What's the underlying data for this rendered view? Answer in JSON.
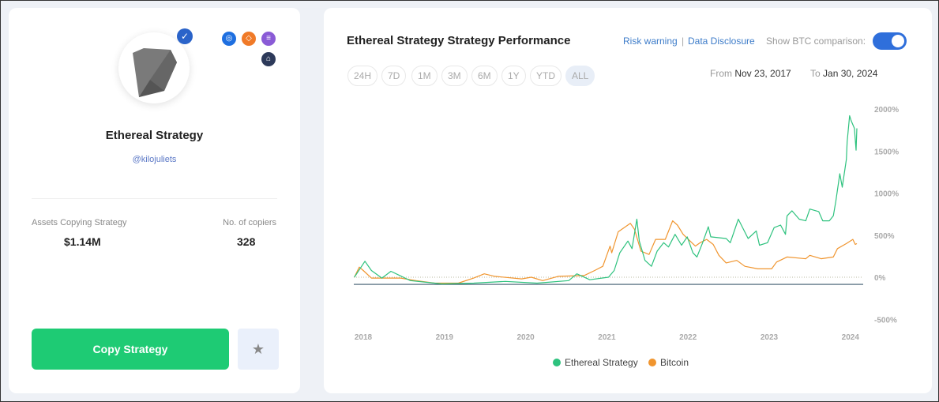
{
  "profile": {
    "name": "Ethereal Strategy",
    "handle": "@kilojuliets",
    "verified": true,
    "badges": [
      "blue-coin-icon",
      "orange-coin-icon",
      "purple-stack-icon",
      "dark-network-icon"
    ],
    "assets_label": "Assets Copying Strategy",
    "assets_value": "$1.14M",
    "copiers_label": "No. of copiers",
    "copiers_value": "328",
    "copy_button": "Copy Strategy",
    "favorite_icon": "star-icon"
  },
  "performance": {
    "title": "Ethereal Strategy Strategy Performance",
    "risk_warning": "Risk warning",
    "separator": "|",
    "data_disclosure": "Data Disclosure",
    "btc_label": "Show BTC comparison:",
    "btc_toggle_on": true,
    "timeframes": [
      "24H",
      "7D",
      "1M",
      "3M",
      "6M",
      "1Y",
      "YTD",
      "ALL"
    ],
    "active_timeframe": "ALL",
    "from_label": "From",
    "from_date": "Nov 23, 2017",
    "to_label": "To",
    "to_date": "Jan 30, 2024"
  },
  "chart_data": {
    "type": "line",
    "ylim": [
      -500,
      2000
    ],
    "xlim": [
      2017.85,
      2024.15
    ],
    "y_ticks": [
      "2000%",
      "1500%",
      "1000%",
      "500%",
      "0%",
      "-500%"
    ],
    "y_tick_values": [
      2000,
      1500,
      1000,
      500,
      0,
      -500
    ],
    "x_ticks": [
      "2018",
      "2019",
      "2020",
      "2021",
      "2022",
      "2023",
      "2024"
    ],
    "x_tick_values": [
      2018,
      2019,
      2020,
      2021,
      2022,
      2023,
      2024
    ],
    "legend_position": "bottom",
    "grid": false,
    "series": [
      {
        "name": "Ethereal Strategy",
        "color": "#2ec27e",
        "points": [
          [
            2017.89,
            0
          ],
          [
            2018.02,
            190
          ],
          [
            2018.1,
            80
          ],
          [
            2018.23,
            -10
          ],
          [
            2018.34,
            70
          ],
          [
            2018.58,
            -40
          ],
          [
            2018.97,
            -80
          ],
          [
            2019.36,
            -70
          ],
          [
            2019.75,
            -50
          ],
          [
            2020.14,
            -70
          ],
          [
            2020.53,
            -40
          ],
          [
            2020.63,
            40
          ],
          [
            2020.79,
            -30
          ],
          [
            2021.02,
            0
          ],
          [
            2021.09,
            80
          ],
          [
            2021.16,
            290
          ],
          [
            2021.26,
            430
          ],
          [
            2021.31,
            340
          ],
          [
            2021.37,
            690
          ],
          [
            2021.4,
            430
          ],
          [
            2021.47,
            200
          ],
          [
            2021.55,
            130
          ],
          [
            2021.62,
            310
          ],
          [
            2021.7,
            410
          ],
          [
            2021.76,
            360
          ],
          [
            2021.84,
            510
          ],
          [
            2021.92,
            380
          ],
          [
            2021.99,
            480
          ],
          [
            2022.06,
            290
          ],
          [
            2022.11,
            240
          ],
          [
            2022.18,
            410
          ],
          [
            2022.25,
            600
          ],
          [
            2022.28,
            480
          ],
          [
            2022.47,
            460
          ],
          [
            2022.52,
            410
          ],
          [
            2022.62,
            690
          ],
          [
            2022.74,
            460
          ],
          [
            2022.84,
            550
          ],
          [
            2022.88,
            380
          ],
          [
            2022.98,
            410
          ],
          [
            2023.06,
            590
          ],
          [
            2023.14,
            620
          ],
          [
            2023.2,
            510
          ],
          [
            2023.22,
            730
          ],
          [
            2023.28,
            790
          ],
          [
            2023.37,
            690
          ],
          [
            2023.45,
            670
          ],
          [
            2023.5,
            810
          ],
          [
            2023.61,
            780
          ],
          [
            2023.66,
            670
          ],
          [
            2023.74,
            670
          ],
          [
            2023.79,
            730
          ],
          [
            2023.82,
            900
          ],
          [
            2023.87,
            1230
          ],
          [
            2023.9,
            1070
          ],
          [
            2023.95,
            1400
          ],
          [
            2023.96,
            1610
          ],
          [
            2023.99,
            1920
          ],
          [
            2024.01,
            1860
          ],
          [
            2024.05,
            1770
          ],
          [
            2024.07,
            1510
          ],
          [
            2024.08,
            1770
          ]
        ]
      },
      {
        "name": "Bitcoin",
        "color": "#f0952f",
        "points": [
          [
            2017.89,
            0
          ],
          [
            2017.95,
            120
          ],
          [
            2018.0,
            80
          ],
          [
            2018.1,
            -10
          ],
          [
            2018.46,
            -10
          ],
          [
            2018.65,
            -40
          ],
          [
            2018.88,
            -70
          ],
          [
            2019.17,
            -70
          ],
          [
            2019.36,
            -10
          ],
          [
            2019.49,
            40
          ],
          [
            2019.62,
            10
          ],
          [
            2019.95,
            -20
          ],
          [
            2020.07,
            0
          ],
          [
            2020.21,
            -40
          ],
          [
            2020.4,
            10
          ],
          [
            2020.72,
            20
          ],
          [
            2020.85,
            80
          ],
          [
            2020.95,
            130
          ],
          [
            2021.04,
            370
          ],
          [
            2021.06,
            290
          ],
          [
            2021.14,
            540
          ],
          [
            2021.29,
            640
          ],
          [
            2021.34,
            570
          ],
          [
            2021.42,
            310
          ],
          [
            2021.52,
            270
          ],
          [
            2021.6,
            450
          ],
          [
            2021.72,
            450
          ],
          [
            2021.81,
            670
          ],
          [
            2021.87,
            620
          ],
          [
            2021.94,
            510
          ],
          [
            2022.09,
            370
          ],
          [
            2022.15,
            410
          ],
          [
            2022.23,
            450
          ],
          [
            2022.31,
            390
          ],
          [
            2022.38,
            260
          ],
          [
            2022.47,
            170
          ],
          [
            2022.6,
            200
          ],
          [
            2022.7,
            130
          ],
          [
            2022.86,
            100
          ],
          [
            2023.03,
            100
          ],
          [
            2023.09,
            180
          ],
          [
            2023.22,
            240
          ],
          [
            2023.45,
            220
          ],
          [
            2023.5,
            260
          ],
          [
            2023.64,
            220
          ],
          [
            2023.79,
            240
          ],
          [
            2023.84,
            340
          ],
          [
            2023.95,
            400
          ],
          [
            2024.03,
            450
          ],
          [
            2024.06,
            390
          ],
          [
            2024.08,
            400
          ]
        ]
      }
    ]
  }
}
